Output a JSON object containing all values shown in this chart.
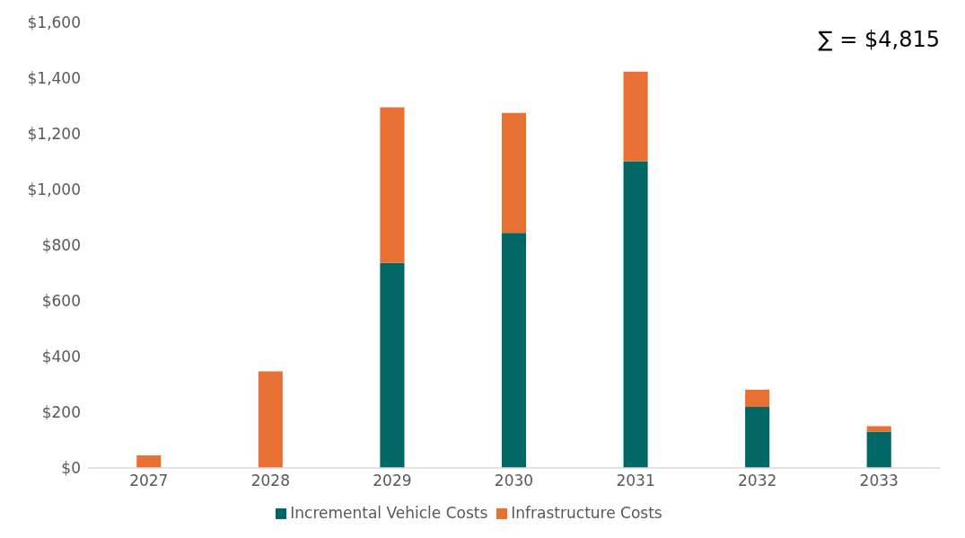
{
  "chart_data": {
    "type": "bar",
    "stacked": true,
    "categories": [
      "2027",
      "2028",
      "2029",
      "2030",
      "2031",
      "2032",
      "2033"
    ],
    "series": [
      {
        "name": "Incremental Vehicle Costs",
        "color": "#016764",
        "values": [
          0,
          0,
          736,
          844,
          1102,
          219,
          131
        ]
      },
      {
        "name": "Infrastructure Costs",
        "color": "#e87033",
        "values": [
          45,
          347,
          559,
          431,
          321,
          62,
          19
        ]
      }
    ],
    "ylim": [
      0,
      1600
    ],
    "yticks": [
      {
        "value": 0,
        "label": "$0"
      },
      {
        "value": 200,
        "label": "$200"
      },
      {
        "value": 400,
        "label": "$400"
      },
      {
        "value": 600,
        "label": "$600"
      },
      {
        "value": 800,
        "label": "$800"
      },
      {
        "value": 1000,
        "label": "$1,000"
      },
      {
        "value": 1200,
        "label": "$1,200"
      },
      {
        "value": 1400,
        "label": "$1,400"
      },
      {
        "value": 1600,
        "label": "$1,600"
      }
    ],
    "annotations": [
      "∑ = $4,815"
    ],
    "legend": "bottom",
    "grid": false
  }
}
